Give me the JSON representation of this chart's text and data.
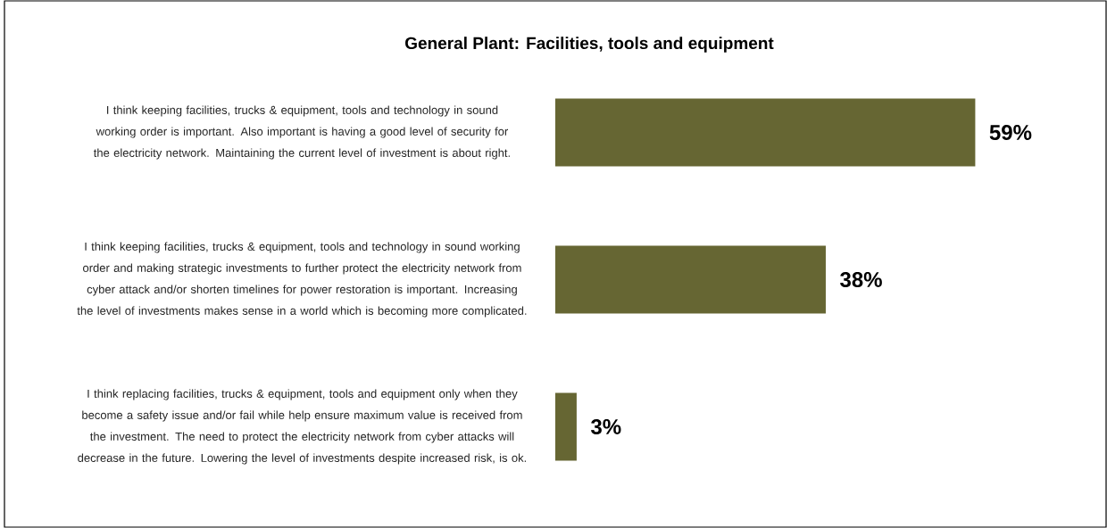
{
  "chart_data": {
    "type": "bar",
    "orientation": "horizontal",
    "title": "General Plant: Facilities, tools and equipment",
    "categories": [
      "I think keeping facilities, trucks & equipment, tools and technology in sound working order is important. Also important is having a good level of security for the electricity network. Maintaining the current level of investment is about right.",
      "I think keeping facilities, trucks & equipment, tools and technology in sound working order and making strategic investments to further protect the electricity network from cyber attack and/or shorten timelines for power restoration is important. Increasing the level of investments makes sense in a world which is becoming more complicated.",
      "I think replacing facilities, trucks & equipment, tools and equipment only when they become a safety issue and/or fail while help ensure maximum value is received from the investment. The need to protect the electricity network from cyber attacks will decrease in the future. Lowering the level of investments despite increased risk, is ok."
    ],
    "values": [
      59,
      38,
      3
    ],
    "value_labels": [
      "59%",
      "38%",
      "3%"
    ],
    "color": "#666633"
  }
}
